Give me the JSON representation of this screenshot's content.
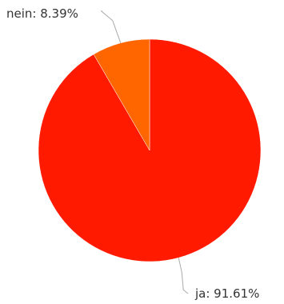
{
  "chart_data": {
    "type": "pie",
    "title": "",
    "start_angle_deg": 0,
    "direction": "clockwise",
    "slices": [
      {
        "label": "ja",
        "value": 91.61,
        "display": "ja: 91.61%",
        "color": "#ff1a00"
      },
      {
        "label": "nein",
        "value": 8.39,
        "display": "nein: 8.39%",
        "color": "#ff6600"
      }
    ]
  }
}
